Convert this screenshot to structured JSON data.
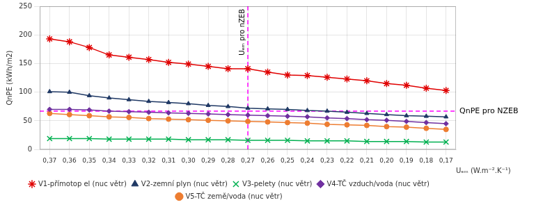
{
  "chart_data": {
    "type": "line",
    "x": [
      0.37,
      0.36,
      0.35,
      0.34,
      0.33,
      0.32,
      0.31,
      0.3,
      0.29,
      0.28,
      0.27,
      0.26,
      0.25,
      0.24,
      0.23,
      0.22,
      0.21,
      0.2,
      0.19,
      0.18,
      0.17
    ],
    "series": [
      {
        "name": "V1-přímotop el (nuc větr)",
        "color": "#e00000",
        "marker": "star",
        "values": [
          193,
          188,
          178,
          165,
          161,
          157,
          152,
          149,
          145,
          141,
          141,
          135,
          130,
          129,
          126,
          123,
          120,
          115,
          112,
          107,
          103
        ]
      },
      {
        "name": "V2-zemní plyn (nuc větr)",
        "color": "#1f3864",
        "marker": "triangle",
        "values": [
          101,
          100,
          94,
          90,
          87,
          84,
          82,
          80,
          77,
          75,
          72,
          71,
          70,
          68,
          67,
          65,
          63,
          61,
          59,
          58,
          57
        ]
      },
      {
        "name": "V3-pelety (nuc větr)",
        "color": "#00b050",
        "marker": "x",
        "values": [
          19,
          19,
          19,
          18,
          18,
          18,
          18,
          17,
          17,
          17,
          16,
          16,
          16,
          15,
          15,
          15,
          14,
          14,
          14,
          13,
          13
        ]
      },
      {
        "name": "V4-TČ vzduch/voda (nuc větr)",
        "color": "#7030a0",
        "marker": "diamond",
        "values": [
          70,
          70,
          69,
          67,
          66,
          65,
          64,
          63,
          62,
          61,
          60,
          59,
          58,
          57,
          55,
          54,
          52,
          51,
          49,
          47,
          45
        ]
      },
      {
        "name": "V5-TČ země/voda (nuc větr)",
        "color": "#ed7d31",
        "marker": "circle",
        "values": [
          63,
          61,
          59,
          57,
          56,
          54,
          53,
          52,
          51,
          50,
          49,
          48,
          47,
          46,
          44,
          43,
          42,
          40,
          39,
          37,
          35
        ]
      }
    ],
    "xlim": [
      0.375,
      0.165
    ],
    "xticks": [
      {
        "value": 0.37,
        "label": "0,37"
      },
      {
        "value": 0.36,
        "label": "0,36"
      },
      {
        "value": 0.35,
        "label": "0,35"
      },
      {
        "value": 0.34,
        "label": "0,34"
      },
      {
        "value": 0.33,
        "label": "0,33"
      },
      {
        "value": 0.32,
        "label": "0,32"
      },
      {
        "value": 0.31,
        "label": "0,31"
      },
      {
        "value": 0.3,
        "label": "0,30"
      },
      {
        "value": 0.29,
        "label": "0,29"
      },
      {
        "value": 0.28,
        "label": "0,28"
      },
      {
        "value": 0.27,
        "label": "0,27"
      },
      {
        "value": 0.26,
        "label": "0,26"
      },
      {
        "value": 0.25,
        "label": "0,25"
      },
      {
        "value": 0.24,
        "label": "0,24"
      },
      {
        "value": 0.23,
        "label": "0,23"
      },
      {
        "value": 0.22,
        "label": "0,22"
      },
      {
        "value": 0.21,
        "label": "0,21"
      },
      {
        "value": 0.2,
        "label": "0,20"
      },
      {
        "value": 0.19,
        "label": "0,19"
      },
      {
        "value": 0.18,
        "label": "0,18"
      },
      {
        "value": 0.17,
        "label": "0,17"
      }
    ],
    "ylim": [
      0,
      250
    ],
    "yticks": [
      0,
      50,
      100,
      150,
      200,
      250
    ],
    "xlabel": "Uₑₘ (W.m⁻².K⁻¹)",
    "ylabel": "QnPE (kWh/m2)",
    "grid": true,
    "legend": "bottom",
    "annotations": [
      {
        "text": "Uₑₘ pro nZEB",
        "x": 0.27,
        "color": "#ff00ff",
        "line_style": "dashed"
      },
      {
        "text": "QnPE pro NZEB",
        "y": 67,
        "color": "#ff00ff",
        "line_style": "dashed"
      }
    ]
  }
}
